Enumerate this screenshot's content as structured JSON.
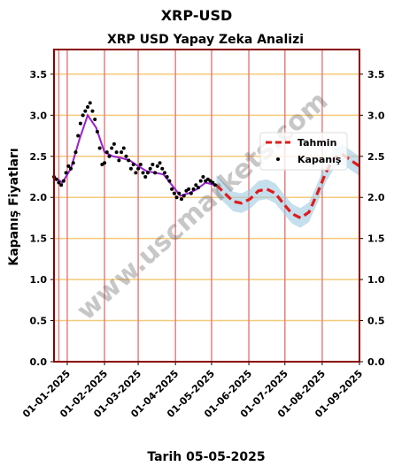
{
  "suptitle": "XRP-USD",
  "watermark": "www.uscmarkets.com",
  "colors": {
    "frame": "#8b0000",
    "hgrid": "#f5c97a",
    "vgrid": "#e88080",
    "forecast": "#e01b1b",
    "band": "#9ecae1",
    "history_line": "#9b1fd1",
    "points": "#000000"
  },
  "chart_data": {
    "type": "line",
    "title": "XRP USD Yapay Zeka Analizi",
    "xlabel": "Tarih 05-05-2025",
    "ylabel": "Kapanış Fiyatları",
    "ylim": [
      0.0,
      3.8
    ],
    "yticks": [
      "0.0",
      "0.5",
      "1.0",
      "1.5",
      "2.0",
      "2.5",
      "3.0",
      "3.5"
    ],
    "xlim": [
      "2024-12-21",
      "2025-09-01"
    ],
    "xticks": [
      "01-01-2025",
      "01-02-2025",
      "01-03-2025",
      "01-04-2025",
      "01-05-2025",
      "01-06-2025",
      "01-07-2025",
      "01-08-2025",
      "01-09-2025"
    ],
    "grid": true,
    "legend_position": "right",
    "series": [
      {
        "name": "Kapanış",
        "style": "points",
        "x": [
          "2024-12-21",
          "2024-12-23",
          "2024-12-25",
          "2024-12-27",
          "2024-12-29",
          "2024-12-31",
          "2025-01-02",
          "2025-01-04",
          "2025-01-06",
          "2025-01-08",
          "2025-01-10",
          "2025-01-12",
          "2025-01-14",
          "2025-01-16",
          "2025-01-18",
          "2025-01-20",
          "2025-01-22",
          "2025-01-24",
          "2025-01-26",
          "2025-01-28",
          "2025-01-30",
          "2025-02-01",
          "2025-02-03",
          "2025-02-05",
          "2025-02-07",
          "2025-02-09",
          "2025-02-11",
          "2025-02-13",
          "2025-02-15",
          "2025-02-17",
          "2025-02-19",
          "2025-02-21",
          "2025-02-23",
          "2025-02-25",
          "2025-02-27",
          "2025-03-01",
          "2025-03-03",
          "2025-03-05",
          "2025-03-07",
          "2025-03-09",
          "2025-03-11",
          "2025-03-13",
          "2025-03-15",
          "2025-03-17",
          "2025-03-19",
          "2025-03-21",
          "2025-03-23",
          "2025-03-25",
          "2025-03-27",
          "2025-03-29",
          "2025-03-31",
          "2025-04-02",
          "2025-04-04",
          "2025-04-06",
          "2025-04-08",
          "2025-04-10",
          "2025-04-12",
          "2025-04-14",
          "2025-04-16",
          "2025-04-18",
          "2025-04-20",
          "2025-04-22",
          "2025-04-24",
          "2025-04-26",
          "2025-04-28",
          "2025-04-30",
          "2025-05-02",
          "2025-05-04"
        ],
        "values": [
          2.25,
          2.22,
          2.18,
          2.15,
          2.2,
          2.3,
          2.38,
          2.35,
          2.42,
          2.55,
          2.75,
          2.9,
          3.0,
          3.05,
          3.1,
          3.15,
          3.05,
          2.95,
          2.8,
          2.6,
          2.4,
          2.42,
          2.55,
          2.5,
          2.6,
          2.65,
          2.55,
          2.45,
          2.55,
          2.6,
          2.5,
          2.45,
          2.35,
          2.4,
          2.3,
          2.35,
          2.4,
          2.3,
          2.25,
          2.3,
          2.35,
          2.4,
          2.3,
          2.38,
          2.42,
          2.35,
          2.3,
          2.25,
          2.2,
          2.1,
          2.05,
          2.0,
          2.05,
          1.98,
          2.02,
          2.08,
          2.1,
          2.05,
          2.1,
          2.15,
          2.12,
          2.2,
          2.25,
          2.2,
          2.22,
          2.2,
          2.18,
          2.15
        ]
      },
      {
        "name": "",
        "style": "line",
        "x": [
          "2024-12-21",
          "2024-12-28",
          "2025-01-04",
          "2025-01-11",
          "2025-01-18",
          "2025-01-25",
          "2025-02-01",
          "2025-02-08",
          "2025-02-15",
          "2025-02-22",
          "2025-03-01",
          "2025-03-08",
          "2025-03-15",
          "2025-03-22",
          "2025-03-29",
          "2025-04-05",
          "2025-04-12",
          "2025-04-19",
          "2025-04-26",
          "2025-05-04"
        ],
        "values": [
          2.25,
          2.18,
          2.35,
          2.7,
          3.0,
          2.85,
          2.55,
          2.5,
          2.48,
          2.45,
          2.38,
          2.32,
          2.3,
          2.28,
          2.15,
          2.02,
          2.05,
          2.1,
          2.18,
          2.15
        ]
      },
      {
        "name": "Tahmin",
        "style": "dashed",
        "x": [
          "2025-05-05",
          "2025-05-12",
          "2025-05-19",
          "2025-05-26",
          "2025-06-02",
          "2025-06-09",
          "2025-06-16",
          "2025-06-23",
          "2025-06-30",
          "2025-07-07",
          "2025-07-14",
          "2025-07-21",
          "2025-07-28",
          "2025-08-04",
          "2025-08-11",
          "2025-08-18",
          "2025-08-25",
          "2025-09-01"
        ],
        "values": [
          2.15,
          2.05,
          1.95,
          1.93,
          1.98,
          2.08,
          2.1,
          2.05,
          1.92,
          1.8,
          1.75,
          1.82,
          2.05,
          2.3,
          2.48,
          2.52,
          2.45,
          2.38
        ]
      }
    ]
  }
}
